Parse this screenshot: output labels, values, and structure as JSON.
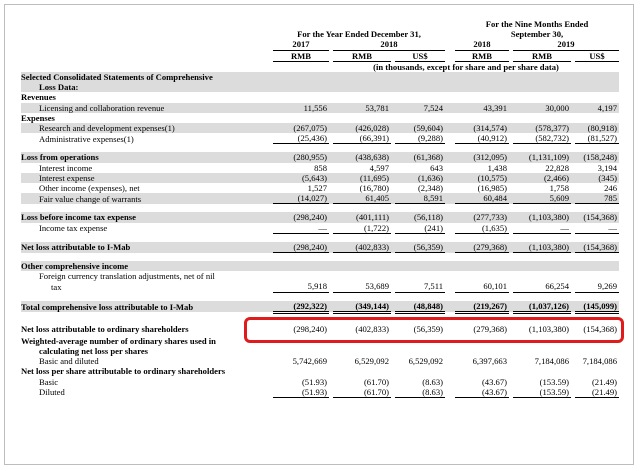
{
  "header": {
    "period_annual": "For the Year Ended December 31,",
    "period_nine_months": "For the Nine Months Ended",
    "period_nine_months_date": "September 30,",
    "years": {
      "y2017": "2017",
      "y2018": "2018",
      "y2018b": "2018",
      "y2019": "2019"
    },
    "currencies": [
      "RMB",
      "RMB",
      "US$",
      "RMB",
      "RMB",
      "US$"
    ],
    "units_note": "(in thousands, except for share and per share data)"
  },
  "section": {
    "title_line1": "Selected Consolidated Statements of Comprehensive",
    "title_line2": "Loss Data:"
  },
  "rows": {
    "revenues": "Revenues",
    "licensing": {
      "label": "Licensing and collaboration revenue",
      "values": [
        "11,556",
        "53,781",
        "7,524",
        "43,391",
        "30,000",
        "4,197"
      ]
    },
    "expenses": "Expenses",
    "rnd": {
      "label": "Research and development expenses(1)",
      "values": [
        "(267,075)",
        "(426,028)",
        "(59,604)",
        "(314,574)",
        "(578,377)",
        "(80,918)"
      ]
    },
    "admin": {
      "label": "Administrative expenses(1)",
      "values": [
        "(25,436)",
        "(66,391)",
        "(9,288)",
        "(40,912)",
        "(582,732)",
        "(81,527)"
      ]
    },
    "loss_ops": {
      "label": "Loss from operations",
      "values": [
        "(280,955)",
        "(438,638)",
        "(61,368)",
        "(312,095)",
        "(1,131,109)",
        "(158,248)"
      ]
    },
    "interest_income": {
      "label": "Interest income",
      "values": [
        "858",
        "4,597",
        "643",
        "1,438",
        "22,828",
        "3,194"
      ]
    },
    "interest_expense": {
      "label": "Interest expense",
      "values": [
        "(5,643)",
        "(11,695)",
        "(1,636)",
        "(10,575)",
        "(2,466)",
        "(345)"
      ]
    },
    "other_income": {
      "label": "Other income (expenses), net",
      "values": [
        "1,527",
        "(16,780)",
        "(2,348)",
        "(16,985)",
        "1,758",
        "246"
      ]
    },
    "fair_value": {
      "label": "Fair value change of warrants",
      "values": [
        "(14,027)",
        "61,405",
        "8,591",
        "60,484",
        "5,609",
        "785"
      ]
    },
    "loss_before_tax": {
      "label": "Loss before income tax expense",
      "values": [
        "(298,240)",
        "(401,111)",
        "(56,118)",
        "(277,733)",
        "(1,103,380)",
        "(154,368)"
      ]
    },
    "income_tax": {
      "label": "Income tax expense",
      "values": [
        "—",
        "(1,722)",
        "(241)",
        "(1,635)",
        "—",
        "—"
      ]
    },
    "net_loss_imab": {
      "label": "Net loss attributable to I-Mab",
      "values": [
        "(298,240)",
        "(402,833)",
        "(56,359)",
        "(279,368)",
        "(1,103,380)",
        "(154,368)"
      ]
    },
    "oci": "Other comprehensive income",
    "fx_adj": {
      "label_line1": "Foreign currency translation adjustments, net of nil",
      "label_line2": "tax",
      "values": [
        "5,918",
        "53,689",
        "7,511",
        "60,101",
        "66,254",
        "9,269"
      ]
    },
    "total_comp_loss": {
      "label": "Total comprehensive loss attributable to I-Mab",
      "values": [
        "(292,322)",
        "(349,144)",
        "(48,848)",
        "(219,267)",
        "(1,037,126)",
        "(145,099)"
      ]
    },
    "net_loss_ordinary": {
      "label": "Net loss attributable to ordinary shareholders",
      "values": [
        "(298,240)",
        "(402,833)",
        "(56,359)",
        "(279,368)",
        "(1,103,380)",
        "(154,368)"
      ]
    },
    "weighted_avg": {
      "label_line1": "Weighted-average number of ordinary shares used in",
      "label_line2": "calculating net loss per shares"
    },
    "basic_diluted": {
      "label": "Basic and diluted",
      "values": [
        "5,742,669",
        "6,529,092",
        "6,529,092",
        "6,397,663",
        "7,184,086",
        "7,184,086"
      ]
    },
    "net_loss_per_share": "Net loss per share attributable to ordinary shareholders",
    "basic": {
      "label": "Basic",
      "values": [
        "(51.93)",
        "(61.70)",
        "(8.63)",
        "(43.67)",
        "(153.59)",
        "(21.49)"
      ]
    },
    "diluted": {
      "label": "Diluted",
      "values": [
        "(51.93)",
        "(61.70)",
        "(8.63)",
        "(43.67)",
        "(153.59)",
        "(21.49)"
      ]
    }
  },
  "colors": {
    "highlight": "#e01b1b",
    "band": "#dcdcdc"
  }
}
